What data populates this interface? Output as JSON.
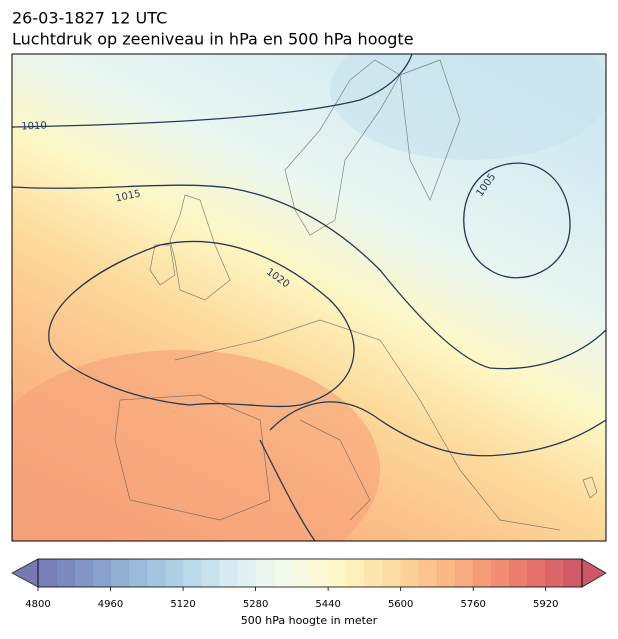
{
  "title": "26-03-1827 12 UTC",
  "subtitle": "Luchtdruk op zeeniveau in hPa en 500 hPa hoogte",
  "isobar_labels": [
    1010,
    1015,
    1020,
    1005
  ],
  "colorbar": {
    "label": "500 hPa hoogte in meter",
    "lim": [
      4800,
      6000
    ],
    "ticks": [
      4800,
      4960,
      5120,
      5280,
      5440,
      5600,
      5760,
      5920
    ]
  }
}
